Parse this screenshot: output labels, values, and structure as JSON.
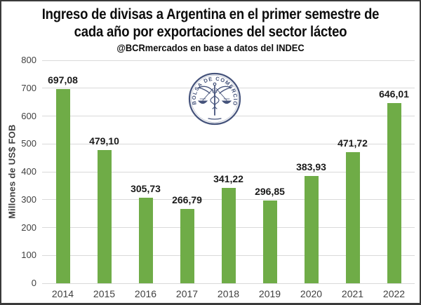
{
  "frame": {
    "background": "#ffffff",
    "border_color": "#3a3a3a"
  },
  "title": {
    "lines": [
      "Ingreso de divisas a Argentina en el primer semestre de",
      "cada año por exportaciones del sector lácteo"
    ],
    "subtitle": "@BCRmercados en base a datos del INDEC"
  },
  "watermark": {
    "name": "bolsa-de-comercio-de-rosario-seal",
    "ring_text": "BOLSA DE COMERCIO DE ROSARIO",
    "color": "#45537b"
  },
  "chart_data": {
    "type": "bar",
    "categories": [
      "2014",
      "2015",
      "2016",
      "2017",
      "2018",
      "2019",
      "2020",
      "2021",
      "2022"
    ],
    "values": [
      697.08,
      479.1,
      305.73,
      266.79,
      341.22,
      296.85,
      383.93,
      471.72,
      646.01
    ],
    "value_labels": [
      "697,08",
      "479,10",
      "305,73",
      "266,79",
      "341,22",
      "296,85",
      "383,93",
      "471,72",
      "646,01"
    ],
    "title": "Ingreso de divisas a Argentina en el primer semestre de cada año por exportaciones del sector lácteo",
    "xlabel": "",
    "ylabel": "Millones de US$ FOB",
    "ylim": [
      0,
      800
    ],
    "yticks": [
      0,
      100,
      200,
      300,
      400,
      500,
      600,
      700,
      800
    ],
    "grid": "horizontal",
    "legend": "none",
    "bar_color": "#6FAC47",
    "gridline_color": "#d9d9d9",
    "tick_color": "#404040",
    "value_label_color": "#1a1a1a"
  }
}
